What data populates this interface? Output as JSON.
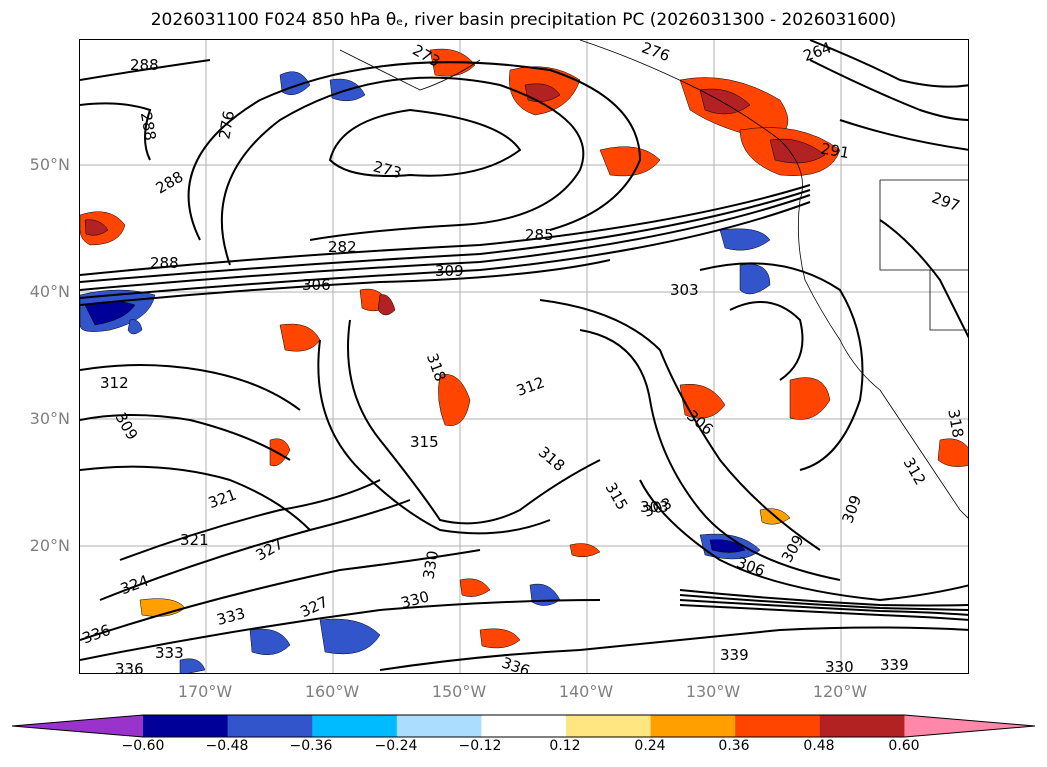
{
  "title": "2026031100 F024 850 hPa θₑ, river basin precipitation PC (2026031300 - 2026031600)",
  "lat_labels": [
    "50°N",
    "40°N",
    "30°N",
    "20°N"
  ],
  "lon_labels": [
    "170°W",
    "160°W",
    "150°W",
    "140°W",
    "130°W",
    "120°W"
  ],
  "colorbar": {
    "ticks": [
      "−0.60",
      "−0.48",
      "−0.36",
      "−0.24",
      "−0.12",
      "0.12",
      "0.24",
      "0.36",
      "0.48",
      "0.60"
    ],
    "colors": [
      "#9933cc",
      "#000099",
      "#3355cc",
      "#00bbff",
      "#aaddff",
      "#ffffff",
      "#ffe680",
      "#ffa000",
      "#ff4500",
      "#b22222",
      "#ff88aa"
    ]
  },
  "contour_labels": [
    "288",
    "288",
    "276",
    "273",
    "288",
    "282",
    "288",
    "306",
    "309",
    "285",
    "303",
    "303",
    "312",
    "309",
    "318",
    "312",
    "306",
    "315",
    "318",
    "315",
    "321",
    "321",
    "327",
    "324",
    "330",
    "330",
    "327",
    "333",
    "336",
    "333",
    "336",
    "303",
    "309",
    "306",
    "309",
    "336",
    "339",
    "330",
    "339",
    "264",
    "291",
    "297",
    "318",
    "312",
    "273",
    "276"
  ]
}
